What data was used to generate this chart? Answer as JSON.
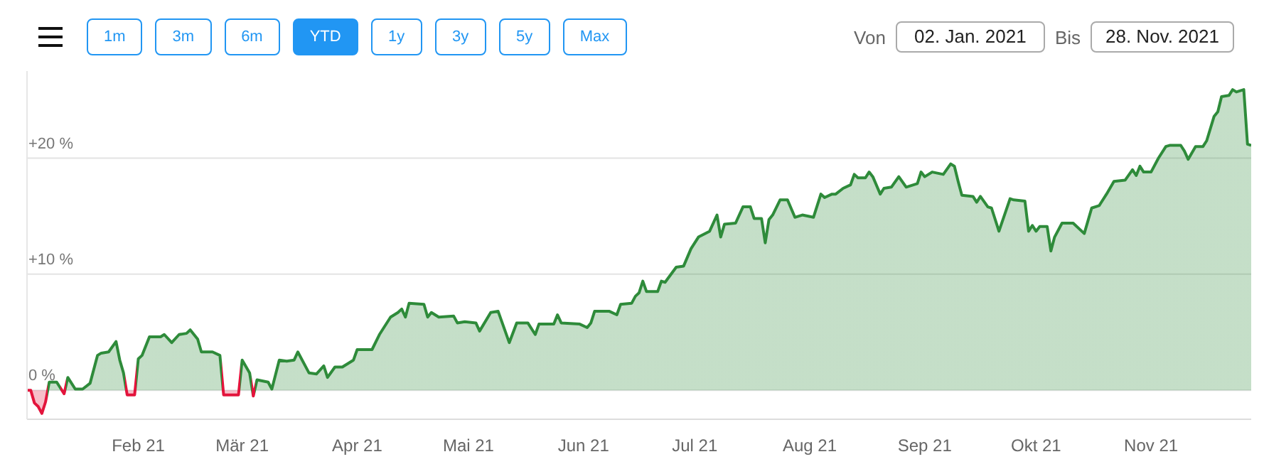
{
  "chart_data": {
    "type": "area",
    "annotations": [
      "1m",
      "3m",
      "6m",
      "YTD",
      "1y",
      "3y",
      "5y",
      "Max",
      "Von",
      "02. Jan. 2021",
      "Bis",
      "28. Nov. 2021"
    ],
    "x": [
      "2021-01-02",
      "2021-01-03",
      "2021-01-04",
      "2021-01-05",
      "2021-01-06",
      "2021-01-07",
      "2021-01-08",
      "2021-01-10",
      "2021-01-12",
      "2021-01-13",
      "2021-01-15",
      "2021-01-17",
      "2021-01-19",
      "2021-01-21",
      "2021-01-22",
      "2021-01-24",
      "2021-01-26",
      "2021-01-27",
      "2021-01-28",
      "2021-01-29",
      "2021-01-31",
      "2021-02-01",
      "2021-02-02",
      "2021-02-04",
      "2021-02-07",
      "2021-02-08",
      "2021-02-10",
      "2021-02-12",
      "2021-02-14",
      "2021-02-15",
      "2021-02-17",
      "2021-02-18",
      "2021-02-21",
      "2021-02-23",
      "2021-02-24",
      "2021-02-28",
      "2021-03-01",
      "2021-03-03",
      "2021-03-04",
      "2021-03-05",
      "2021-03-08",
      "2021-03-09",
      "2021-03-11",
      "2021-03-13",
      "2021-03-15",
      "2021-03-16",
      "2021-03-19",
      "2021-03-21",
      "2021-03-23",
      "2021-03-24",
      "2021-03-26",
      "2021-03-28",
      "2021-03-31",
      "2021-04-01",
      "2021-04-05",
      "2021-04-07",
      "2021-04-10",
      "2021-04-12",
      "2021-04-13",
      "2021-04-14",
      "2021-04-15",
      "2021-04-19",
      "2021-04-20",
      "2021-04-21",
      "2021-04-23",
      "2021-04-27",
      "2021-04-28",
      "2021-04-30",
      "2021-05-03",
      "2021-05-04",
      "2021-05-07",
      "2021-05-09",
      "2021-05-12",
      "2021-05-14",
      "2021-05-17",
      "2021-05-19",
      "2021-05-20",
      "2021-05-24",
      "2021-05-25",
      "2021-05-26",
      "2021-05-31",
      "2021-06-02",
      "2021-06-03",
      "2021-06-04",
      "2021-06-08",
      "2021-06-10",
      "2021-06-11",
      "2021-06-14",
      "2021-06-15",
      "2021-06-16",
      "2021-06-17",
      "2021-06-18",
      "2021-06-21",
      "2021-06-22",
      "2021-06-23",
      "2021-06-26",
      "2021-06-28",
      "2021-06-30",
      "2021-07-02",
      "2021-07-05",
      "2021-07-07",
      "2021-07-08",
      "2021-07-09",
      "2021-07-12",
      "2021-07-14",
      "2021-07-16",
      "2021-07-17",
      "2021-07-19",
      "2021-07-20",
      "2021-07-21",
      "2021-07-22",
      "2021-07-24",
      "2021-07-26",
      "2021-07-28",
      "2021-07-30",
      "2021-08-02",
      "2021-08-04",
      "2021-08-05",
      "2021-08-07",
      "2021-08-08",
      "2021-08-10",
      "2021-08-12",
      "2021-08-13",
      "2021-08-14",
      "2021-08-16",
      "2021-08-17",
      "2021-08-18",
      "2021-08-20",
      "2021-08-21",
      "2021-08-23",
      "2021-08-25",
      "2021-08-27",
      "2021-08-30",
      "2021-08-31",
      "2021-09-01",
      "2021-09-03",
      "2021-09-06",
      "2021-09-08",
      "2021-09-09",
      "2021-09-10",
      "2021-09-11",
      "2021-09-14",
      "2021-09-15",
      "2021-09-16",
      "2021-09-18",
      "2021-09-19",
      "2021-09-21",
      "2021-09-24",
      "2021-09-25",
      "2021-09-28",
      "2021-09-29",
      "2021-09-30",
      "2021-10-01",
      "2021-10-02",
      "2021-10-04",
      "2021-10-05",
      "2021-10-06",
      "2021-10-08",
      "2021-10-11",
      "2021-10-14",
      "2021-10-16",
      "2021-10-18",
      "2021-10-20",
      "2021-10-22",
      "2021-10-25",
      "2021-10-27",
      "2021-10-28",
      "2021-10-29",
      "2021-10-30",
      "2021-11-01",
      "2021-11-03",
      "2021-11-05",
      "2021-11-06",
      "2021-11-09",
      "2021-11-10",
      "2021-11-11",
      "2021-11-13",
      "2021-11-15",
      "2021-11-16",
      "2021-11-18",
      "2021-11-19",
      "2021-11-20",
      "2021-11-22",
      "2021-11-23",
      "2021-11-24",
      "2021-11-26",
      "2021-11-27",
      "2021-11-28"
    ],
    "series": [
      {
        "colors": [
          "#e3143c",
          "#e3143c",
          "#e3143c",
          "#e3143c",
          "#e3143c",
          "#e3143c",
          "#2e8b3a",
          "#2e8b3a",
          "#e3143c",
          "#2e8b3a",
          "#2e8b3a",
          "#2e8b3a",
          "#2e8b3a",
          "#2e8b3a",
          "#2e8b3a",
          "#2e8b3a",
          "#2e8b3a",
          "#2e8b3a",
          "#2e8b3a",
          "#e3143c",
          "#e3143c",
          "#2e8b3a",
          "#2e8b3a",
          "#2e8b3a",
          "#2e8b3a",
          "#2e8b3a",
          "#2e8b3a",
          "#2e8b3a",
          "#2e8b3a",
          "#2e8b3a",
          "#2e8b3a",
          "#2e8b3a",
          "#2e8b3a",
          "#2e8b3a",
          "#e3143c",
          "#e3143c",
          "#2e8b3a",
          "#2e8b3a",
          "#e3143c",
          "#2e8b3a",
          "#2e8b3a",
          "#2e8b3a",
          "#2e8b3a",
          "#2e8b3a",
          "#2e8b3a",
          "#2e8b3a",
          "#2e8b3a",
          "#2e8b3a",
          "#2e8b3a",
          "#2e8b3a",
          "#2e8b3a",
          "#2e8b3a",
          "#2e8b3a",
          "#2e8b3a",
          "#2e8b3a",
          "#2e8b3a",
          "#2e8b3a",
          "#2e8b3a",
          "#2e8b3a",
          "#2e8b3a",
          "#2e8b3a",
          "#2e8b3a",
          "#2e8b3a",
          "#2e8b3a",
          "#2e8b3a",
          "#2e8b3a",
          "#2e8b3a",
          "#2e8b3a",
          "#2e8b3a",
          "#2e8b3a",
          "#2e8b3a",
          "#2e8b3a",
          "#2e8b3a",
          "#2e8b3a",
          "#2e8b3a",
          "#2e8b3a",
          "#2e8b3a",
          "#2e8b3a",
          "#2e8b3a",
          "#2e8b3a",
          "#2e8b3a",
          "#2e8b3a",
          "#2e8b3a",
          "#2e8b3a",
          "#2e8b3a",
          "#2e8b3a",
          "#2e8b3a",
          "#2e8b3a",
          "#2e8b3a",
          "#2e8b3a",
          "#2e8b3a",
          "#2e8b3a",
          "#2e8b3a",
          "#2e8b3a",
          "#2e8b3a",
          "#2e8b3a",
          "#2e8b3a",
          "#2e8b3a",
          "#2e8b3a",
          "#2e8b3a",
          "#2e8b3a",
          "#2e8b3a",
          "#2e8b3a",
          "#2e8b3a",
          "#2e8b3a",
          "#2e8b3a",
          "#2e8b3a",
          "#2e8b3a",
          "#2e8b3a",
          "#2e8b3a",
          "#2e8b3a",
          "#2e8b3a",
          "#2e8b3a",
          "#2e8b3a",
          "#2e8b3a",
          "#2e8b3a",
          "#2e8b3a",
          "#2e8b3a",
          "#2e8b3a",
          "#2e8b3a",
          "#2e8b3a",
          "#2e8b3a",
          "#2e8b3a",
          "#2e8b3a",
          "#2e8b3a",
          "#2e8b3a",
          "#2e8b3a",
          "#2e8b3a",
          "#2e8b3a",
          "#2e8b3a",
          "#2e8b3a",
          "#2e8b3a",
          "#2e8b3a",
          "#2e8b3a",
          "#2e8b3a",
          "#2e8b3a",
          "#2e8b3a",
          "#2e8b3a",
          "#2e8b3a",
          "#2e8b3a",
          "#2e8b3a",
          "#2e8b3a",
          "#2e8b3a",
          "#2e8b3a",
          "#2e8b3a",
          "#2e8b3a",
          "#2e8b3a",
          "#2e8b3a",
          "#2e8b3a",
          "#2e8b3a",
          "#2e8b3a",
          "#2e8b3a",
          "#2e8b3a",
          "#2e8b3a",
          "#2e8b3a",
          "#2e8b3a",
          "#2e8b3a",
          "#2e8b3a",
          "#2e8b3a",
          "#2e8b3a",
          "#2e8b3a",
          "#2e8b3a",
          "#2e8b3a",
          "#2e8b3a",
          "#2e8b3a",
          "#2e8b3a",
          "#2e8b3a",
          "#2e8b3a",
          "#2e8b3a",
          "#2e8b3a",
          "#2e8b3a",
          "#2e8b3a",
          "#2e8b3a",
          "#2e8b3a",
          "#2e8b3a",
          "#2e8b3a",
          "#2e8b3a",
          "#2e8b3a",
          "#2e8b3a",
          "#2e8b3a",
          "#2e8b3a",
          "#2e8b3a",
          "#2e8b3a",
          "#2e8b3a",
          "#2e8b3a",
          "#2e8b3a",
          "#2e8b3a",
          "#2e8b3a"
        ],
        "values": [
          0,
          0,
          -1.1,
          -1.4,
          -2.0,
          -1.0,
          0.7,
          0.7,
          -0.3,
          1.1,
          0.1,
          0.1,
          0.6,
          3.0,
          3.2,
          3.3,
          4.2,
          2.6,
          1.5,
          -0.4,
          -0.4,
          2.7,
          3.0,
          4.6,
          4.6,
          4.8,
          4.1,
          4.8,
          4.9,
          5.2,
          4.4,
          3.3,
          3.3,
          3.0,
          -0.4,
          -0.4,
          2.6,
          1.5,
          -0.5,
          0.9,
          0.7,
          0.1,
          2.6,
          2.5,
          2.6,
          3.3,
          1.5,
          1.4,
          2.1,
          1.1,
          2.0,
          2.0,
          2.6,
          3.5,
          3.5,
          4.8,
          6.3,
          6.7,
          7.0,
          6.3,
          7.5,
          7.4,
          6.3,
          6.7,
          6.3,
          6.4,
          5.8,
          5.9,
          5.8,
          5.1,
          6.7,
          6.8,
          4.1,
          5.8,
          5.8,
          4.8,
          5.7,
          5.7,
          6.5,
          5.8,
          5.7,
          5.4,
          5.8,
          6.8,
          6.8,
          6.5,
          7.4,
          7.5,
          8.1,
          8.4,
          9.4,
          8.5,
          8.5,
          9.4,
          9.3,
          10.6,
          10.7,
          12.2,
          13.2,
          13.7,
          15.1,
          13.2,
          14.3,
          14.4,
          15.8,
          15.8,
          14.8,
          14.8,
          12.7,
          14.7,
          15.1,
          16.4,
          16.4,
          14.9,
          15.1,
          14.9,
          16.9,
          16.6,
          16.9,
          16.9,
          17.4,
          17.7,
          18.6,
          18.3,
          18.3,
          18.8,
          18.4,
          16.9,
          17.4,
          17.5,
          18.4,
          17.5,
          17.8,
          18.8,
          18.4,
          18.8,
          18.6,
          19.5,
          19.3,
          18.0,
          16.8,
          16.7,
          16.2,
          16.7,
          15.8,
          15.7,
          13.7,
          16.5,
          16.4,
          16.3,
          13.7,
          14.2,
          13.7,
          14.1,
          14.1,
          12.0,
          13.2,
          14.4,
          14.4,
          13.5,
          15.7,
          15.9,
          16.9,
          18.0,
          18.1,
          19.0,
          18.5,
          19.3,
          18.8,
          18.8,
          20.0,
          21.0,
          21.1,
          21.1,
          20.6,
          19.9,
          21.0,
          21.0,
          21.5,
          23.6,
          24.0,
          25.3,
          25.4,
          25.9,
          25.7,
          25.9,
          21.2,
          21.1
        ]
      }
    ],
    "xlim": [
      "2021-01-02",
      "2021-11-28"
    ],
    "xticks": [
      {
        "value": "2021-02-01",
        "label": "Feb 21"
      },
      {
        "value": "2021-03-01",
        "label": "Mär 21"
      },
      {
        "value": "2021-04-01",
        "label": "Apr 21"
      },
      {
        "value": "2021-05-01",
        "label": "Mai 21"
      },
      {
        "value": "2021-06-01",
        "label": "Jun 21"
      },
      {
        "value": "2021-07-01",
        "label": "Jul 21"
      },
      {
        "value": "2021-08-01",
        "label": "Aug 21"
      },
      {
        "value": "2021-09-01",
        "label": "Sep 21"
      },
      {
        "value": "2021-10-01",
        "label": "Okt 21"
      },
      {
        "value": "2021-11-01",
        "label": "Nov 21"
      }
    ],
    "ylim": [
      -2.5,
      27.5
    ],
    "yticks": [
      {
        "value": 0,
        "label": "0 %"
      },
      {
        "value": 10,
        "label": "+10 %"
      },
      {
        "value": 20,
        "label": "+20 %"
      }
    ],
    "grid": "y"
  }
}
